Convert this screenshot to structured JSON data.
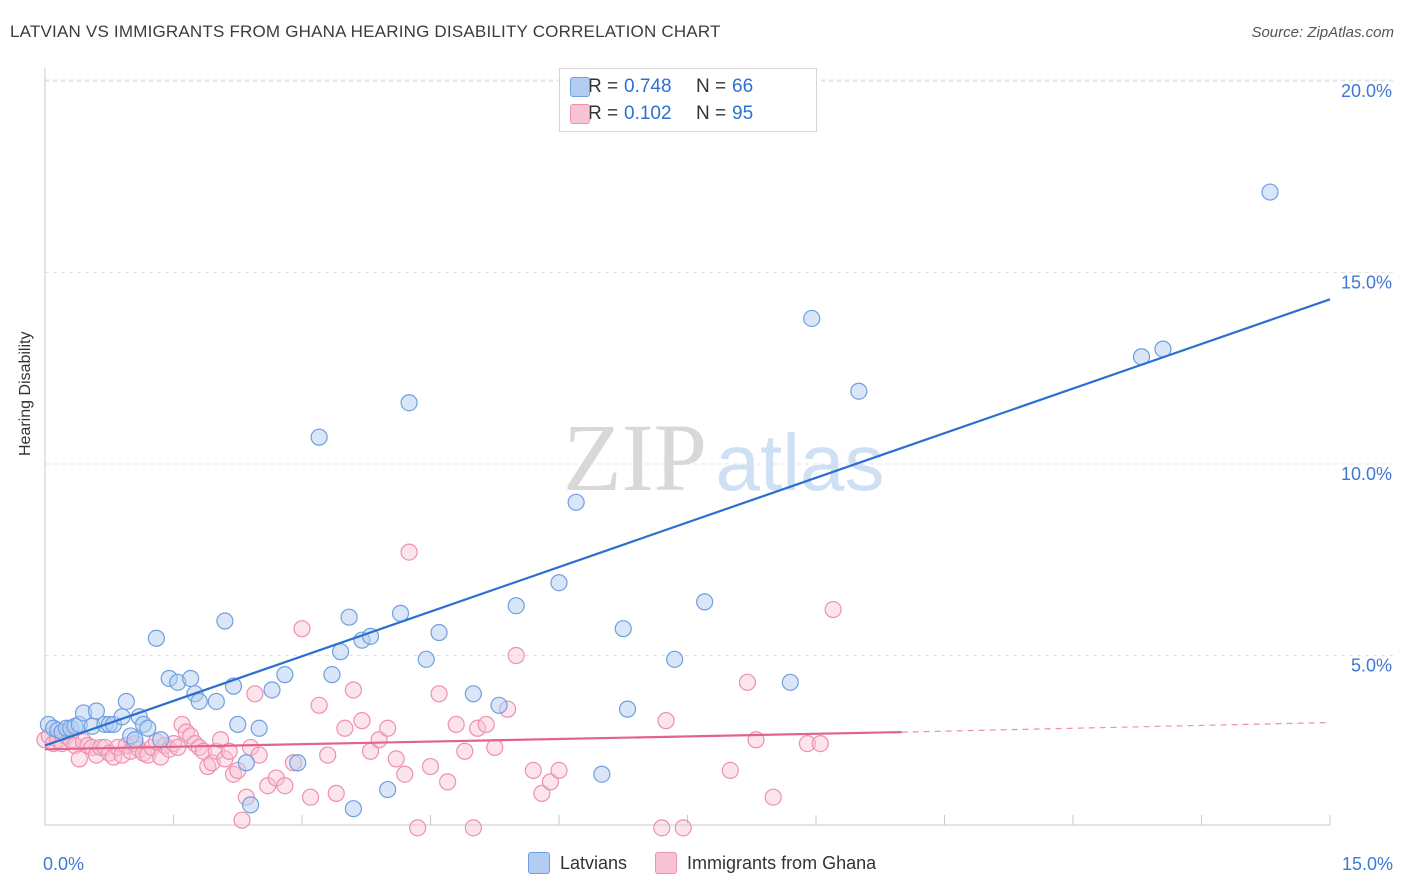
{
  "header": {
    "title": "LATVIAN VS IMMIGRANTS FROM GHANA HEARING DISABILITY CORRELATION CHART",
    "source": "Source: ZipAtlas.com"
  },
  "watermark": {
    "zip": "ZIP",
    "atlas": "atlas"
  },
  "legend": {
    "rows": [
      {
        "r_label": "R =",
        "r_value": "0.748",
        "n_label": "N =",
        "n_value": "66"
      },
      {
        "r_label": "R =",
        "r_value": "0.102",
        "n_label": "N =",
        "n_value": "95"
      }
    ]
  },
  "bottom_legend": {
    "items": [
      "Latvians",
      "Immigrants from Ghana"
    ]
  },
  "chart_data": {
    "type": "scatter",
    "title": "LATVIAN VS IMMIGRANTS FROM GHANA HEARING DISABILITY CORRELATION CHART",
    "xlabel": "",
    "ylabel": "Hearing Disability",
    "xlim": [
      0,
      15
    ],
    "ylim": [
      0,
      20
    ],
    "x_tick_labels": [
      "0.0%",
      "15.0%"
    ],
    "y_ticks": [
      5,
      10,
      15,
      20
    ],
    "y_tick_labels": [
      "5.0%",
      "10.0%",
      "15.0%",
      "20.0%"
    ],
    "grid": true,
    "legend_position": "top-center",
    "colors": {
      "latvians_fill": "#b3cdf2",
      "latvians_stroke": "#6f9fe0",
      "latvians_line": "#2a6fd1",
      "ghana_fill": "#f8c3d4",
      "ghana_stroke": "#ee90ae",
      "ghana_line": "#e2638c",
      "tick_label": "#3d78d8"
    },
    "series": [
      {
        "name": "Latvians",
        "points": [
          [
            0.04,
            3.2
          ],
          [
            0.1,
            3.1
          ],
          [
            0.15,
            3.05
          ],
          [
            0.2,
            3.0
          ],
          [
            0.25,
            3.1
          ],
          [
            0.3,
            3.1
          ],
          [
            0.35,
            3.15
          ],
          [
            0.4,
            3.2
          ],
          [
            0.45,
            3.5
          ],
          [
            0.55,
            3.15
          ],
          [
            0.6,
            3.55
          ],
          [
            0.7,
            3.2
          ],
          [
            0.75,
            3.2
          ],
          [
            0.8,
            3.2
          ],
          [
            0.9,
            3.4
          ],
          [
            0.95,
            3.8
          ],
          [
            1.0,
            2.9
          ],
          [
            1.05,
            2.8
          ],
          [
            1.1,
            3.4
          ],
          [
            1.15,
            3.2
          ],
          [
            1.2,
            3.1
          ],
          [
            1.3,
            5.45
          ],
          [
            1.35,
            2.8
          ],
          [
            1.45,
            4.4
          ],
          [
            1.55,
            4.3
          ],
          [
            1.7,
            4.4
          ],
          [
            1.75,
            4.0
          ],
          [
            1.8,
            3.8
          ],
          [
            2.0,
            3.8
          ],
          [
            2.1,
            5.9
          ],
          [
            2.2,
            4.2
          ],
          [
            2.25,
            3.2
          ],
          [
            2.35,
            2.2
          ],
          [
            2.4,
            1.1
          ],
          [
            2.5,
            3.1
          ],
          [
            2.65,
            4.1
          ],
          [
            2.8,
            4.5
          ],
          [
            2.95,
            2.2
          ],
          [
            3.2,
            10.7
          ],
          [
            3.35,
            4.5
          ],
          [
            3.45,
            5.1
          ],
          [
            3.55,
            6.0
          ],
          [
            3.6,
            1.0
          ],
          [
            3.7,
            5.4
          ],
          [
            3.8,
            5.5
          ],
          [
            4.0,
            1.5
          ],
          [
            4.15,
            6.1
          ],
          [
            4.25,
            11.6
          ],
          [
            4.45,
            4.9
          ],
          [
            4.6,
            5.6
          ],
          [
            5.0,
            4.0
          ],
          [
            5.3,
            3.7
          ],
          [
            5.5,
            6.3
          ],
          [
            6.0,
            6.9
          ],
          [
            6.2,
            9.0
          ],
          [
            6.5,
            1.9
          ],
          [
            6.75,
            5.7
          ],
          [
            6.8,
            3.6
          ],
          [
            7.35,
            4.9
          ],
          [
            7.7,
            6.4
          ],
          [
            8.7,
            4.3
          ],
          [
            8.95,
            13.8
          ],
          [
            9.5,
            11.9
          ],
          [
            12.8,
            12.8
          ],
          [
            13.05,
            13.0
          ],
          [
            14.3,
            17.1
          ]
        ]
      },
      {
        "name": "Immigrants from Ghana",
        "points": [
          [
            0.0,
            2.8
          ],
          [
            0.05,
            2.9
          ],
          [
            0.1,
            2.7
          ],
          [
            0.15,
            2.8
          ],
          [
            0.2,
            2.7
          ],
          [
            0.25,
            2.9
          ],
          [
            0.3,
            2.8
          ],
          [
            0.35,
            2.65
          ],
          [
            0.4,
            2.3
          ],
          [
            0.45,
            2.75
          ],
          [
            0.5,
            2.65
          ],
          [
            0.55,
            2.6
          ],
          [
            0.6,
            2.4
          ],
          [
            0.65,
            2.6
          ],
          [
            0.7,
            2.6
          ],
          [
            0.75,
            2.45
          ],
          [
            0.8,
            2.35
          ],
          [
            0.85,
            2.6
          ],
          [
            0.9,
            2.4
          ],
          [
            0.95,
            2.65
          ],
          [
            1.0,
            2.5
          ],
          [
            1.05,
            2.7
          ],
          [
            1.1,
            2.55
          ],
          [
            1.15,
            2.45
          ],
          [
            1.2,
            2.4
          ],
          [
            1.25,
            2.6
          ],
          [
            1.3,
            2.75
          ],
          [
            1.35,
            2.35
          ],
          [
            1.4,
            2.65
          ],
          [
            1.45,
            2.55
          ],
          [
            1.5,
            2.7
          ],
          [
            1.55,
            2.6
          ],
          [
            1.6,
            3.2
          ],
          [
            1.65,
            3.0
          ],
          [
            1.7,
            2.9
          ],
          [
            1.75,
            2.7
          ],
          [
            1.8,
            2.6
          ],
          [
            1.85,
            2.5
          ],
          [
            1.9,
            2.1
          ],
          [
            1.95,
            2.2
          ],
          [
            2.0,
            2.5
          ],
          [
            2.05,
            2.8
          ],
          [
            2.1,
            2.3
          ],
          [
            2.15,
            2.5
          ],
          [
            2.2,
            1.9
          ],
          [
            2.25,
            2.0
          ],
          [
            2.3,
            0.7
          ],
          [
            2.35,
            1.3
          ],
          [
            2.4,
            2.6
          ],
          [
            2.45,
            4.0
          ],
          [
            2.5,
            2.4
          ],
          [
            2.6,
            1.6
          ],
          [
            2.7,
            1.8
          ],
          [
            2.8,
            1.6
          ],
          [
            2.9,
            2.2
          ],
          [
            3.0,
            5.7
          ],
          [
            3.1,
            1.3
          ],
          [
            3.2,
            3.7
          ],
          [
            3.3,
            2.4
          ],
          [
            3.4,
            1.4
          ],
          [
            3.5,
            3.1
          ],
          [
            3.6,
            4.1
          ],
          [
            3.7,
            3.3
          ],
          [
            3.8,
            2.5
          ],
          [
            3.9,
            2.8
          ],
          [
            4.0,
            3.1
          ],
          [
            4.1,
            2.3
          ],
          [
            4.2,
            1.9
          ],
          [
            4.25,
            7.7
          ],
          [
            4.35,
            0.5
          ],
          [
            4.5,
            2.1
          ],
          [
            4.6,
            4.0
          ],
          [
            4.7,
            1.7
          ],
          [
            4.8,
            3.2
          ],
          [
            4.9,
            2.5
          ],
          [
            5.0,
            0.5
          ],
          [
            5.05,
            3.1
          ],
          [
            5.15,
            3.2
          ],
          [
            5.25,
            2.6
          ],
          [
            5.4,
            3.6
          ],
          [
            5.5,
            5.0
          ],
          [
            5.7,
            2.0
          ],
          [
            5.8,
            1.4
          ],
          [
            5.9,
            1.7
          ],
          [
            6.0,
            2.0
          ],
          [
            7.2,
            0.5
          ],
          [
            7.25,
            3.3
          ],
          [
            7.45,
            0.5
          ],
          [
            8.0,
            2.0
          ],
          [
            8.2,
            4.3
          ],
          [
            8.3,
            2.8
          ],
          [
            8.5,
            1.3
          ],
          [
            8.9,
            2.7
          ],
          [
            9.05,
            2.7
          ],
          [
            9.2,
            6.2
          ]
        ]
      }
    ],
    "trendlines": [
      {
        "series": "Latvians",
        "x": [
          0,
          15
        ],
        "y": [
          2.65,
          14.3
        ]
      },
      {
        "series": "Immigrants from Ghana",
        "x": [
          0,
          10
        ],
        "y": [
          2.55,
          3.0
        ],
        "dashed_extension_to": [
          15,
          3.25
        ]
      }
    ]
  }
}
